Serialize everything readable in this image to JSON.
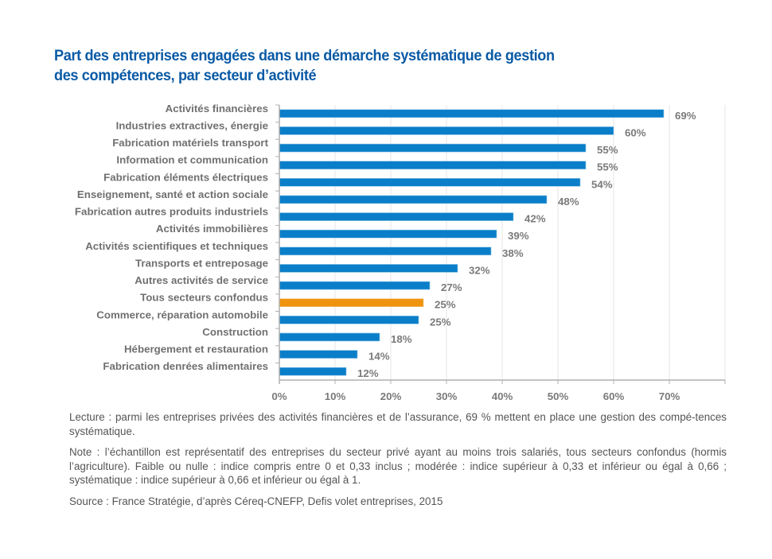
{
  "title": {
    "line1": "Part des entreprises engagées dans une démarche systématique de gestion",
    "line2": "des compétences, par secteur d’activité"
  },
  "colors": {
    "title": "#0a5aa5",
    "bar": "#0a7ec8",
    "bar_highlight": "#f0940f",
    "label": "#707070",
    "grid": "#e6e6e6",
    "axis": "#b0b0b0"
  },
  "chart_data": {
    "type": "bar",
    "orientation": "horizontal",
    "title": "Part des entreprises engagées dans une démarche systématique de gestion des compétences, par secteur d’activité",
    "xlabel": "",
    "ylabel": "",
    "xlim": [
      0,
      80
    ],
    "x_ticks": [
      0,
      10,
      20,
      30,
      40,
      50,
      60,
      70
    ],
    "x_tick_labels": [
      "0%",
      "10%",
      "20%",
      "30%",
      "40%",
      "50%",
      "60%",
      "70%"
    ],
    "grid": true,
    "legend": "none",
    "categories": [
      "Activités financières",
      "Industries extractives, énergie",
      "Fabrication matériels transport",
      "Information et communication",
      "Fabrication éléments électriques",
      "Enseignement, santé et action sociale",
      "Fabrication autres produits industriels",
      "Activités immobilières",
      "Activités scientifiques et techniques",
      "Transports et entreposage",
      "Autres activités de service",
      "Tous secteurs confondus",
      "Commerce, réparation automobile",
      "Construction",
      "Hébergement et restauration",
      "Fabrication denrées alimentaires"
    ],
    "values": [
      69,
      60,
      55,
      55,
      54,
      48,
      42,
      39,
      38,
      32,
      27,
      25,
      25,
      18,
      14,
      12
    ],
    "value_labels": [
      "69%",
      "60%",
      "55%",
      "55%",
      "54%",
      "48%",
      "42%",
      "39%",
      "38%",
      "32%",
      "27%",
      "25%",
      "25%",
      "18%",
      "14%",
      "12%"
    ],
    "highlight_index": 11
  },
  "notes": {
    "lecture": "Lecture : parmi les entreprises privées des activités financières et de l’assurance, 69 % mettent en place une gestion des compé-tences systématique.",
    "note": "Note : l’échantillon est représentatif des entreprises du secteur privé ayant au moins trois salariés, tous secteurs confondus (hormis l’agriculture). Faible ou nulle : indice compris entre 0 et 0,33 inclus ; modérée : indice supérieur à 0,33 et inférieur ou égal à 0,66 ; systématique : indice supérieur à 0,66 et inférieur ou égal à 1.",
    "source": "Source : France Stratégie, d’après Céreq-CNEFP, Defis volet entreprises, 2015"
  }
}
